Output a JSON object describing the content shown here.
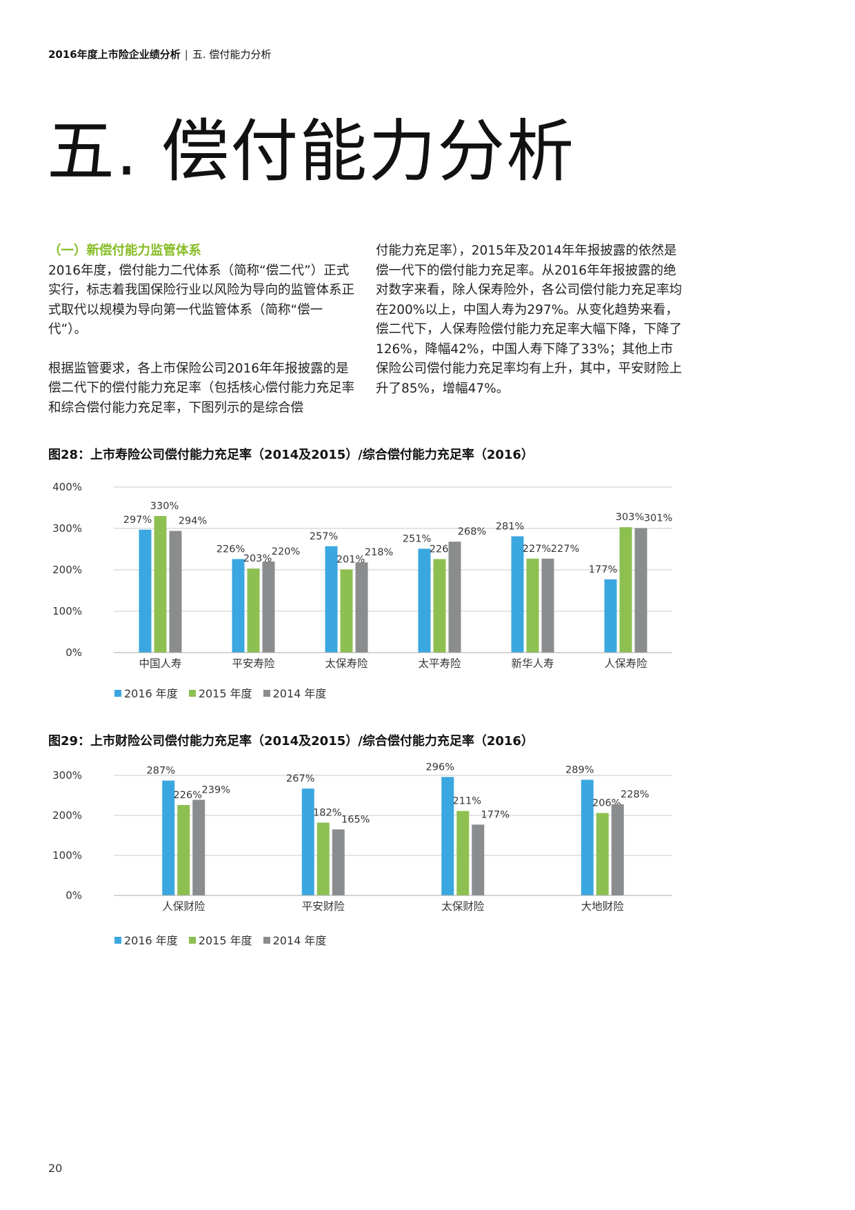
{
  "header": {
    "report": "2016年度上市险企业绩分析",
    "separator": "|",
    "section": "五. 偿付能力分析"
  },
  "title": "五. 偿付能力分析",
  "left_column": {
    "heading": "（一）新偿付能力监管体系",
    "para1": "2016年度，偿付能力二代体系（简称“偿二代”）正式实行，标志着我国保险行业以风险为导向的监管体系正式取代以规模为导向第一代监管体系（简称“偿一代”）。",
    "para2": "根据监管要求，各上市保险公司2016年年报披露的是偿二代下的偿付能力充足率（包括核心偿付能力充足率和综合偿付能力充足率，下图列示的是综合偿"
  },
  "right_column": {
    "para": "付能力充足率），2015年及2014年年报披露的依然是偿一代下的偿付能力充足率。从2016年年报披露的绝对数字来看，除人保寿险外，各公司偿付能力充足率均在200%以上，中国人寿为297%。从变化趋势来看，偿二代下，人保寿险偿付能力充足率大幅下降，下降了126%，降幅42%，中国人寿下降了33%；其他上市保险公司偿付能力充足率均有上升，其中，平安财险上升了85%，增幅47%。"
  },
  "colors": {
    "y2016": "#3aa7e0",
    "y2015": "#8dc051",
    "y2014": "#8a8c8e",
    "accent": "#86bc25"
  },
  "chart_data": [
    {
      "type": "bar",
      "title": "图28：上市寿险公司偿付能力充足率（2014及2015）/综合偿付能力充足率（2016）",
      "categories": [
        "中国人寿",
        "平安寿险",
        "太保寿险",
        "太平寿险",
        "新华人寿",
        "人保寿险"
      ],
      "series": [
        {
          "name": "2016 年度",
          "values": [
            297,
            226,
            257,
            251,
            281,
            177
          ]
        },
        {
          "name": "2015 年度",
          "values": [
            330,
            203,
            201,
            226,
            227,
            303
          ]
        },
        {
          "name": "2014 年度",
          "values": [
            294,
            220,
            218,
            268,
            227,
            301
          ]
        }
      ],
      "value_labels": [
        [
          "297%",
          "226%",
          "257%",
          "251%",
          "281%",
          "177%"
        ],
        [
          "330%",
          "203%",
          "201%",
          "226%",
          "227%",
          "303%"
        ],
        [
          "294%",
          "220%",
          "218%",
          "268%",
          "227%",
          "301%"
        ]
      ],
      "ylim": [
        0,
        400
      ],
      "yticks": [
        0,
        100,
        200,
        300,
        400
      ],
      "ytick_labels": [
        "0%",
        "100%",
        "200%",
        "300%",
        "400%"
      ],
      "grid": true,
      "legend": "bottom-left"
    },
    {
      "type": "bar",
      "title": "图29：上市财险公司偿付能力充足率（2014及2015）/综合偿付能力充足率（2016）",
      "categories": [
        "人保财险",
        "平安财险",
        "太保财险",
        "大地财险"
      ],
      "series": [
        {
          "name": "2016 年度",
          "values": [
            287,
            267,
            296,
            289
          ]
        },
        {
          "name": "2015 年度",
          "values": [
            226,
            182,
            211,
            206
          ]
        },
        {
          "name": "2014 年度",
          "values": [
            239,
            165,
            177,
            228
          ]
        }
      ],
      "value_labels": [
        [
          "287%",
          "267%",
          "296%",
          "289%"
        ],
        [
          "226%",
          "182%",
          "211%",
          "206%"
        ],
        [
          "239%",
          "165%",
          "177%",
          "228%"
        ]
      ],
      "ylim": [
        0,
        300
      ],
      "yticks": [
        0,
        100,
        200,
        300
      ],
      "ytick_labels": [
        "0%",
        "100%",
        "200%",
        "300%"
      ],
      "grid": true,
      "legend": "bottom-left"
    }
  ],
  "page_number": "20"
}
